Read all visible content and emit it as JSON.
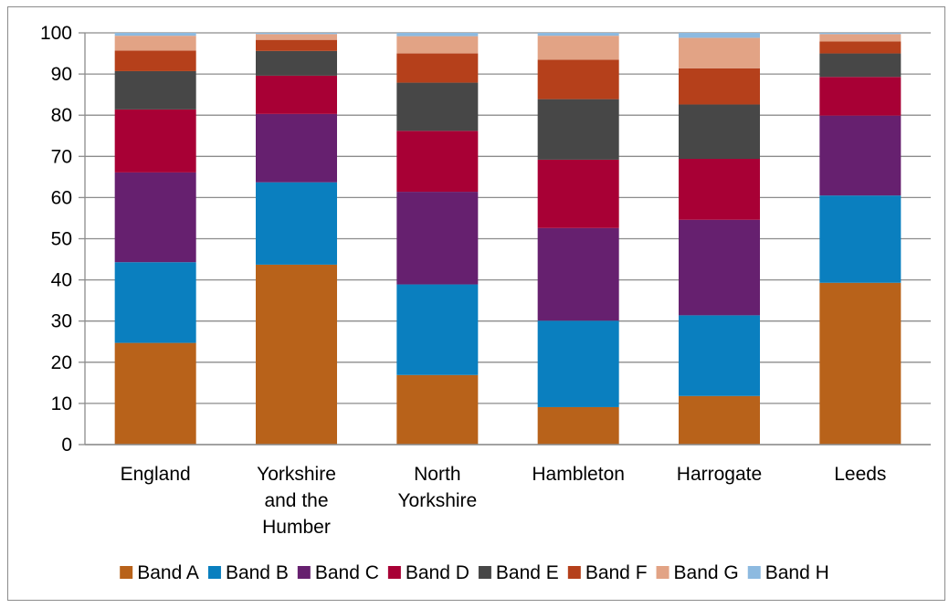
{
  "chart_data": {
    "type": "bar",
    "stacked": true,
    "title": "",
    "xlabel": "",
    "ylabel": "",
    "ylim": [
      0,
      100
    ],
    "yticks": [
      0,
      10,
      20,
      30,
      40,
      50,
      60,
      70,
      80,
      90,
      100
    ],
    "grid": true,
    "legend_position": "bottom",
    "categories": [
      [
        "England"
      ],
      [
        "Yorkshire",
        "and the",
        "Humber"
      ],
      [
        "North",
        "Yorkshire"
      ],
      [
        "Hambleton"
      ],
      [
        "Harrogate"
      ],
      [
        "Leeds"
      ]
    ],
    "series": [
      {
        "name": "Band A",
        "color": "#b8621a",
        "values": [
          24.7,
          43.7,
          16.9,
          9.1,
          11.8,
          39.3
        ]
      },
      {
        "name": "Band B",
        "color": "#0a7fbf",
        "values": [
          19.6,
          20.0,
          22.0,
          21.0,
          19.6,
          21.2
        ]
      },
      {
        "name": "Band C",
        "color": "#66206f",
        "values": [
          21.8,
          16.6,
          22.5,
          22.5,
          23.2,
          19.4
        ]
      },
      {
        "name": "Band D",
        "color": "#a80035",
        "values": [
          15.3,
          9.3,
          14.8,
          16.6,
          14.8,
          9.4
        ]
      },
      {
        "name": "Band E",
        "color": "#474747",
        "values": [
          9.3,
          6.0,
          11.7,
          14.7,
          13.2,
          5.7
        ]
      },
      {
        "name": "Band F",
        "color": "#b5401b",
        "values": [
          5.0,
          2.7,
          7.1,
          9.6,
          8.8,
          2.9
        ]
      },
      {
        "name": "Band G",
        "color": "#e2a385",
        "values": [
          3.6,
          1.4,
          4.2,
          5.8,
          7.4,
          1.8
        ]
      },
      {
        "name": "Band H",
        "color": "#8dbae0",
        "values": [
          0.7,
          0.3,
          0.8,
          0.7,
          1.2,
          0.3
        ]
      }
    ]
  }
}
